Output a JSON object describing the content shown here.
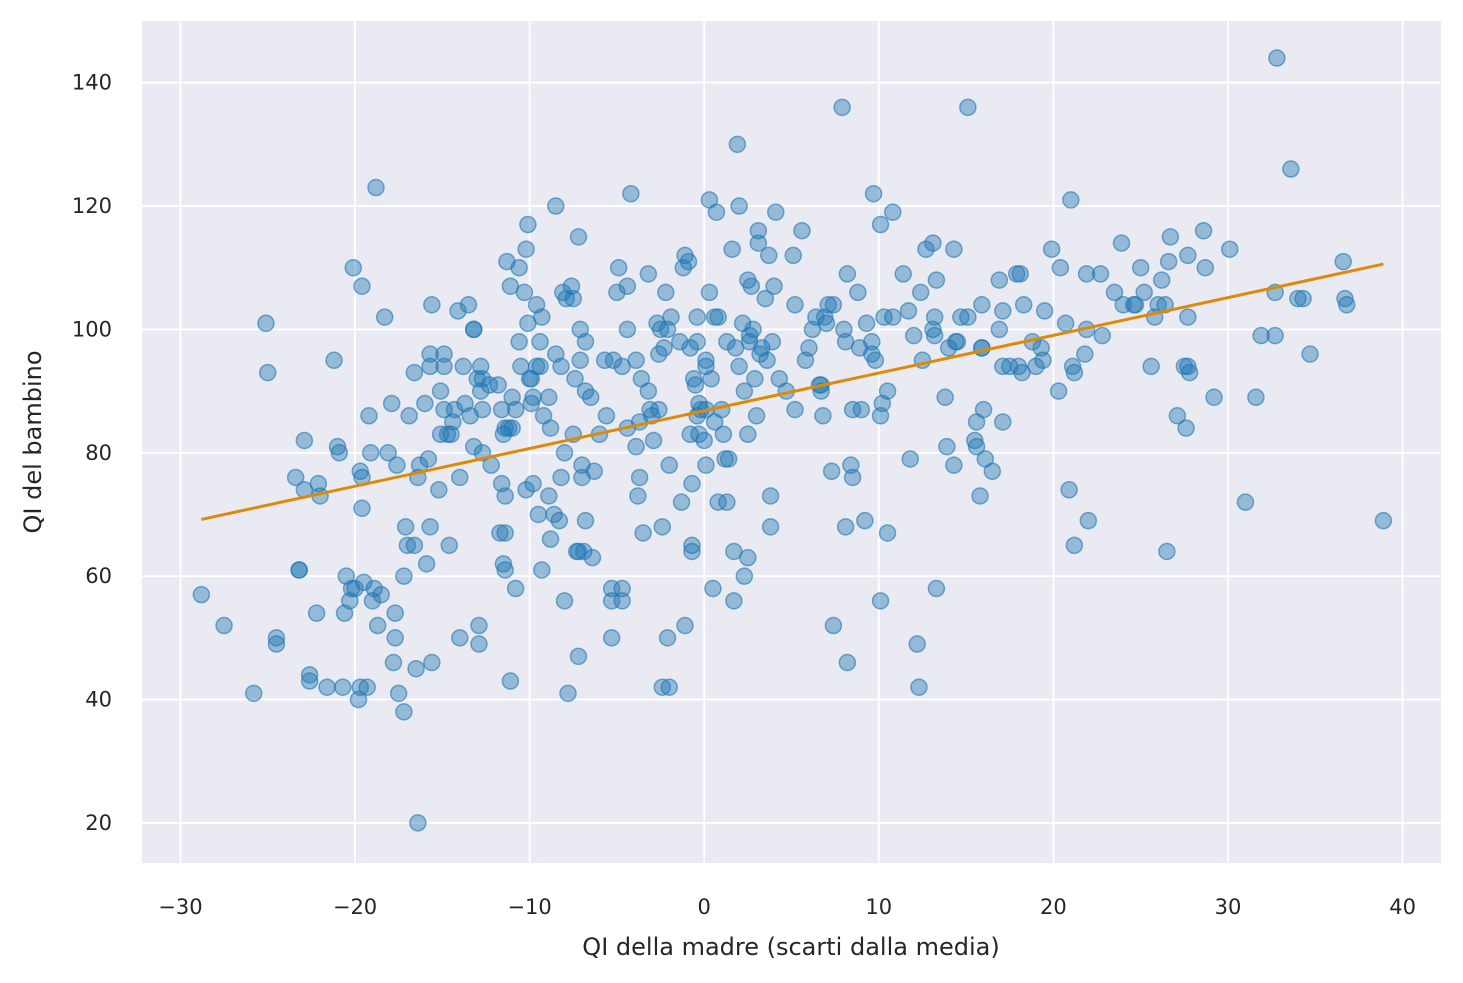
{
  "chart_data": {
    "type": "scatter",
    "xlabel": "QI della madre (scarti dalla media)",
    "ylabel": "QI del bambino",
    "xlim": [
      -32.2,
      42.2
    ],
    "ylim": [
      13.5,
      150
    ],
    "xticks": [
      -30,
      -20,
      -10,
      0,
      10,
      20,
      30,
      40
    ],
    "xtick_labels": [
      "−30",
      "−20",
      "−10",
      "0",
      "10",
      "20",
      "30",
      "40"
    ],
    "yticks": [
      20,
      40,
      60,
      80,
      100,
      120,
      140
    ],
    "ytick_labels": [
      "20",
      "40",
      "60",
      "80",
      "100",
      "120",
      "140"
    ],
    "grid": true,
    "colors": {
      "points": "#1f77b4",
      "line": "#dd8a0a",
      "background": "#eaeaf2"
    },
    "regression_line": {
      "x": [
        -28.8,
        38.9
      ],
      "y": [
        69.2,
        110.6
      ]
    },
    "points": [
      [
        -28.8,
        57
      ],
      [
        -27.5,
        52
      ],
      [
        -25.8,
        41
      ],
      [
        -25.1,
        101
      ],
      [
        -25.0,
        93
      ],
      [
        -24.5,
        50
      ],
      [
        -24.5,
        49
      ],
      [
        -23.4,
        76
      ],
      [
        -23.2,
        61
      ],
      [
        -23.2,
        61
      ],
      [
        -22.9,
        82
      ],
      [
        -22.9,
        74
      ],
      [
        -22.6,
        44
      ],
      [
        -22.6,
        43
      ],
      [
        -22.2,
        54
      ],
      [
        -22.1,
        75
      ],
      [
        -22.0,
        73
      ],
      [
        -21.6,
        42
      ],
      [
        -21.2,
        95
      ],
      [
        -21.0,
        81
      ],
      [
        -20.9,
        80
      ],
      [
        -20.7,
        42
      ],
      [
        -20.6,
        54
      ],
      [
        -20.5,
        60
      ],
      [
        -20.3,
        56
      ],
      [
        -20.2,
        58
      ],
      [
        -20.1,
        110
      ],
      [
        -20.0,
        58
      ],
      [
        -19.8,
        40
      ],
      [
        -19.7,
        42
      ],
      [
        -19.7,
        77
      ],
      [
        -19.6,
        76
      ],
      [
        -19.6,
        107
      ],
      [
        -19.6,
        71
      ],
      [
        -19.5,
        59
      ],
      [
        -19.3,
        42
      ],
      [
        -19.2,
        86
      ],
      [
        -19.1,
        80
      ],
      [
        -19.0,
        56
      ],
      [
        -18.9,
        58
      ],
      [
        -18.8,
        123
      ],
      [
        -18.7,
        52
      ],
      [
        -18.5,
        57
      ],
      [
        -18.3,
        102
      ],
      [
        -18.1,
        80
      ],
      [
        -17.9,
        88
      ],
      [
        -17.8,
        46
      ],
      [
        -17.7,
        54
      ],
      [
        -17.7,
        50
      ],
      [
        -17.6,
        78
      ],
      [
        -17.5,
        41
      ],
      [
        -17.2,
        60
      ],
      [
        -17.2,
        38
      ],
      [
        -17.1,
        68
      ],
      [
        -17.0,
        65
      ],
      [
        -16.9,
        86
      ],
      [
        -16.6,
        93
      ],
      [
        -16.6,
        65
      ],
      [
        -16.5,
        45
      ],
      [
        -16.4,
        76
      ],
      [
        -16.4,
        20
      ],
      [
        -16.3,
        78
      ],
      [
        -16.0,
        88
      ],
      [
        -15.9,
        62
      ],
      [
        -15.8,
        79
      ],
      [
        -15.7,
        96
      ],
      [
        -15.7,
        94
      ],
      [
        -15.7,
        68
      ],
      [
        -15.6,
        104
      ],
      [
        -15.6,
        46
      ],
      [
        -15.2,
        74
      ],
      [
        -15.1,
        83
      ],
      [
        -15.1,
        90
      ],
      [
        -14.9,
        96
      ],
      [
        -14.9,
        94
      ],
      [
        -14.9,
        87
      ],
      [
        -14.7,
        83
      ],
      [
        -14.6,
        65
      ],
      [
        -14.5,
        83
      ],
      [
        -14.4,
        85
      ],
      [
        -14.3,
        87
      ],
      [
        -14.1,
        103
      ],
      [
        -14.0,
        50
      ],
      [
        -14.0,
        76
      ],
      [
        -13.8,
        94
      ],
      [
        -13.7,
        88
      ],
      [
        -13.5,
        104
      ],
      [
        -13.4,
        86
      ],
      [
        -13.2,
        81
      ],
      [
        -13.2,
        100
      ],
      [
        -13.2,
        100
      ],
      [
        -13.0,
        92
      ],
      [
        -12.9,
        52
      ],
      [
        -12.9,
        49
      ],
      [
        -12.8,
        94
      ],
      [
        -12.8,
        90
      ],
      [
        -12.7,
        80
      ],
      [
        -12.7,
        92
      ],
      [
        -12.7,
        87
      ],
      [
        -12.3,
        91
      ],
      [
        -12.2,
        78
      ],
      [
        -11.8,
        91
      ],
      [
        -11.7,
        67
      ],
      [
        -11.6,
        75
      ],
      [
        -11.6,
        87
      ],
      [
        -11.5,
        83
      ],
      [
        -11.5,
        62
      ],
      [
        -11.4,
        61
      ],
      [
        -11.4,
        73
      ],
      [
        -11.4,
        67
      ],
      [
        -11.4,
        84
      ],
      [
        -11.3,
        111
      ],
      [
        -11.2,
        84
      ],
      [
        -11.1,
        43
      ],
      [
        -11.1,
        107
      ],
      [
        -11.0,
        89
      ],
      [
        -11.0,
        84
      ],
      [
        -10.8,
        58
      ],
      [
        -10.8,
        87
      ],
      [
        -10.6,
        98
      ],
      [
        -10.6,
        110
      ],
      [
        -10.5,
        94
      ],
      [
        -10.3,
        106
      ],
      [
        -10.2,
        74
      ],
      [
        -10.2,
        113
      ],
      [
        -10.1,
        117
      ],
      [
        -10.1,
        101
      ],
      [
        -10.0,
        92
      ],
      [
        -9.9,
        88
      ],
      [
        -9.9,
        92
      ],
      [
        -9.8,
        89
      ],
      [
        -9.8,
        75
      ],
      [
        -9.6,
        104
      ],
      [
        -9.6,
        94
      ],
      [
        -9.5,
        70
      ],
      [
        -9.4,
        94
      ],
      [
        -9.4,
        98
      ],
      [
        -9.3,
        102
      ],
      [
        -9.3,
        61
      ],
      [
        -9.2,
        86
      ],
      [
        -8.9,
        89
      ],
      [
        -8.9,
        73
      ],
      [
        -8.8,
        66
      ],
      [
        -8.8,
        84
      ],
      [
        -8.6,
        70
      ],
      [
        -8.5,
        96
      ],
      [
        -8.5,
        120
      ],
      [
        -8.3,
        69
      ],
      [
        -8.2,
        94
      ],
      [
        -8.2,
        76
      ],
      [
        -8.1,
        106
      ],
      [
        -8.0,
        80
      ],
      [
        -8.0,
        56
      ],
      [
        -7.9,
        105
      ],
      [
        -7.8,
        41
      ],
      [
        -7.6,
        107
      ],
      [
        -7.5,
        105
      ],
      [
        -7.5,
        83
      ],
      [
        -7.4,
        92
      ],
      [
        -7.3,
        64
      ],
      [
        -7.2,
        115
      ],
      [
        -7.2,
        64
      ],
      [
        -7.2,
        47
      ],
      [
        -7.1,
        100
      ],
      [
        -7.1,
        95
      ],
      [
        -7.0,
        76
      ],
      [
        -7.0,
        78
      ],
      [
        -6.9,
        64
      ],
      [
        -6.8,
        69
      ],
      [
        -6.8,
        98
      ],
      [
        -6.8,
        90
      ],
      [
        -6.5,
        89
      ],
      [
        -6.4,
        63
      ],
      [
        -6.3,
        77
      ],
      [
        -6.0,
        83
      ],
      [
        -5.7,
        95
      ],
      [
        -5.6,
        86
      ],
      [
        -5.3,
        56
      ],
      [
        -5.3,
        58
      ],
      [
        -5.3,
        50
      ],
      [
        -5.2,
        95
      ],
      [
        -5.0,
        106
      ],
      [
        -4.9,
        110
      ],
      [
        -4.7,
        56
      ],
      [
        -4.7,
        58
      ],
      [
        -4.7,
        94
      ],
      [
        -4.4,
        107
      ],
      [
        -4.4,
        84
      ],
      [
        -4.4,
        100
      ],
      [
        -4.2,
        122
      ],
      [
        -3.9,
        95
      ],
      [
        -3.9,
        81
      ],
      [
        -3.8,
        73
      ],
      [
        -3.7,
        85
      ],
      [
        -3.7,
        76
      ],
      [
        -3.6,
        92
      ],
      [
        -3.5,
        67
      ],
      [
        -3.2,
        109
      ],
      [
        -3.2,
        90
      ],
      [
        -3.1,
        87
      ],
      [
        -3.0,
        86
      ],
      [
        -2.9,
        82
      ],
      [
        -2.7,
        101
      ],
      [
        -2.6,
        96
      ],
      [
        -2.6,
        87
      ],
      [
        -2.5,
        100
      ],
      [
        -2.4,
        68
      ],
      [
        -2.4,
        42
      ],
      [
        -2.3,
        97
      ],
      [
        -2.2,
        106
      ],
      [
        -2.1,
        100
      ],
      [
        -2.1,
        50
      ],
      [
        -2.0,
        42
      ],
      [
        -2.0,
        78
      ],
      [
        -1.9,
        102
      ],
      [
        -1.4,
        98
      ],
      [
        -1.3,
        72
      ],
      [
        -1.2,
        110
      ],
      [
        -1.1,
        52
      ],
      [
        -1.1,
        112
      ],
      [
        -0.9,
        111
      ],
      [
        -0.8,
        97
      ],
      [
        -0.8,
        83
      ],
      [
        -0.7,
        64
      ],
      [
        -0.7,
        65
      ],
      [
        -0.7,
        75
      ],
      [
        -0.6,
        92
      ],
      [
        -0.5,
        91
      ],
      [
        -0.4,
        102
      ],
      [
        -0.4,
        86
      ],
      [
        -0.4,
        98
      ],
      [
        -0.3,
        83
      ],
      [
        -0.3,
        88
      ],
      [
        -0.2,
        87
      ],
      [
        0,
        82
      ],
      [
        0.1,
        95
      ],
      [
        0.1,
        94
      ],
      [
        0.1,
        78
      ],
      [
        0.1,
        87
      ],
      [
        0.3,
        106
      ],
      [
        0.3,
        121
      ],
      [
        0.4,
        92
      ],
      [
        0.5,
        58
      ],
      [
        0.6,
        85
      ],
      [
        0.6,
        102
      ],
      [
        0.7,
        119
      ],
      [
        0.8,
        102
      ],
      [
        0.8,
        72
      ],
      [
        1.0,
        87
      ],
      [
        1.1,
        83
      ],
      [
        1.2,
        79
      ],
      [
        1.3,
        98
      ],
      [
        1.3,
        72
      ],
      [
        1.4,
        79
      ],
      [
        1.6,
        113
      ],
      [
        1.7,
        64
      ],
      [
        1.7,
        56
      ],
      [
        1.8,
        97
      ],
      [
        1.9,
        130
      ],
      [
        2.0,
        120
      ],
      [
        2.0,
        94
      ],
      [
        2.2,
        101
      ],
      [
        2.3,
        90
      ],
      [
        2.3,
        60
      ],
      [
        2.5,
        63
      ],
      [
        2.5,
        108
      ],
      [
        2.5,
        83
      ],
      [
        2.6,
        99
      ],
      [
        2.6,
        98
      ],
      [
        2.7,
        107
      ],
      [
        2.8,
        100
      ],
      [
        2.9,
        92
      ],
      [
        3.0,
        86
      ],
      [
        3.1,
        116
      ],
      [
        3.1,
        114
      ],
      [
        3.2,
        96
      ],
      [
        3.3,
        97
      ],
      [
        3.5,
        105
      ],
      [
        3.6,
        95
      ],
      [
        3.7,
        112
      ],
      [
        3.8,
        73
      ],
      [
        3.8,
        68
      ],
      [
        3.9,
        98
      ],
      [
        4.0,
        107
      ],
      [
        4.1,
        119
      ],
      [
        4.3,
        92
      ],
      [
        4.7,
        90
      ],
      [
        5.1,
        112
      ],
      [
        5.2,
        104
      ],
      [
        5.2,
        87
      ],
      [
        5.6,
        116
      ],
      [
        5.8,
        95
      ],
      [
        6.0,
        97
      ],
      [
        6.2,
        100
      ],
      [
        6.4,
        102
      ],
      [
        6.6,
        91
      ],
      [
        6.7,
        90
      ],
      [
        6.7,
        91
      ],
      [
        6.8,
        86
      ],
      [
        6.9,
        102
      ],
      [
        7.0,
        101
      ],
      [
        7.1,
        104
      ],
      [
        7.3,
        77
      ],
      [
        7.4,
        104
      ],
      [
        7.4,
        52
      ],
      [
        7.9,
        136
      ],
      [
        8.0,
        100
      ],
      [
        8.1,
        98
      ],
      [
        8.1,
        68
      ],
      [
        8.2,
        109
      ],
      [
        8.2,
        46
      ],
      [
        8.4,
        78
      ],
      [
        8.5,
        87
      ],
      [
        8.5,
        76
      ],
      [
        8.8,
        106
      ],
      [
        8.9,
        97
      ],
      [
        9.0,
        87
      ],
      [
        9.2,
        69
      ],
      [
        9.3,
        101
      ],
      [
        9.6,
        98
      ],
      [
        9.6,
        96
      ],
      [
        9.7,
        122
      ],
      [
        9.8,
        95
      ],
      [
        10.1,
        117
      ],
      [
        10.1,
        86
      ],
      [
        10.1,
        56
      ],
      [
        10.2,
        88
      ],
      [
        10.3,
        102
      ],
      [
        10.5,
        67
      ],
      [
        10.5,
        90
      ],
      [
        10.8,
        119
      ],
      [
        10.8,
        102
      ],
      [
        11.4,
        109
      ],
      [
        11.7,
        103
      ],
      [
        11.8,
        79
      ],
      [
        12.0,
        99
      ],
      [
        12.2,
        49
      ],
      [
        12.3,
        42
      ],
      [
        12.4,
        106
      ],
      [
        12.5,
        95
      ],
      [
        12.7,
        113
      ],
      [
        13.1,
        114
      ],
      [
        13.1,
        100
      ],
      [
        13.2,
        102
      ],
      [
        13.2,
        99
      ],
      [
        13.3,
        108
      ],
      [
        13.3,
        58
      ],
      [
        13.8,
        89
      ],
      [
        13.9,
        81
      ],
      [
        14.0,
        97
      ],
      [
        14.3,
        113
      ],
      [
        14.3,
        78
      ],
      [
        14.4,
        98
      ],
      [
        14.5,
        98
      ],
      [
        14.7,
        102
      ],
      [
        15.1,
        136
      ],
      [
        15.1,
        102
      ],
      [
        15.5,
        82
      ],
      [
        15.6,
        81
      ],
      [
        15.6,
        85
      ],
      [
        15.8,
        73
      ],
      [
        15.9,
        104
      ],
      [
        15.9,
        97
      ],
      [
        15.9,
        97
      ],
      [
        16.0,
        87
      ],
      [
        16.1,
        79
      ],
      [
        16.5,
        77
      ],
      [
        16.9,
        100
      ],
      [
        16.9,
        108
      ],
      [
        17.1,
        103
      ],
      [
        17.1,
        94
      ],
      [
        17.1,
        85
      ],
      [
        17.5,
        94
      ],
      [
        17.9,
        109
      ],
      [
        18.0,
        94
      ],
      [
        18.1,
        109
      ],
      [
        18.2,
        93
      ],
      [
        18.3,
        104
      ],
      [
        18.8,
        98
      ],
      [
        19.0,
        94
      ],
      [
        19.3,
        97
      ],
      [
        19.4,
        95
      ],
      [
        19.5,
        103
      ],
      [
        19.9,
        113
      ],
      [
        20.3,
        90
      ],
      [
        20.4,
        110
      ],
      [
        20.7,
        101
      ],
      [
        20.9,
        74
      ],
      [
        21.0,
        121
      ],
      [
        21.1,
        94
      ],
      [
        21.2,
        93
      ],
      [
        21.2,
        65
      ],
      [
        21.8,
        96
      ],
      [
        21.9,
        109
      ],
      [
        21.9,
        100
      ],
      [
        22.0,
        69
      ],
      [
        22.7,
        109
      ],
      [
        22.8,
        99
      ],
      [
        23.5,
        106
      ],
      [
        23.9,
        114
      ],
      [
        24.0,
        104
      ],
      [
        24.6,
        104
      ],
      [
        24.7,
        104
      ],
      [
        25.0,
        110
      ],
      [
        25.2,
        106
      ],
      [
        25.6,
        94
      ],
      [
        25.8,
        102
      ],
      [
        26.0,
        104
      ],
      [
        26.2,
        108
      ],
      [
        26.4,
        104
      ],
      [
        26.5,
        64
      ],
      [
        26.6,
        111
      ],
      [
        26.7,
        115
      ],
      [
        27.1,
        86
      ],
      [
        27.5,
        94
      ],
      [
        27.6,
        84
      ],
      [
        27.7,
        102
      ],
      [
        27.7,
        94
      ],
      [
        27.7,
        112
      ],
      [
        27.8,
        93
      ],
      [
        28.6,
        116
      ],
      [
        28.7,
        110
      ],
      [
        29.2,
        89
      ],
      [
        30.1,
        113
      ],
      [
        31.0,
        72
      ],
      [
        31.6,
        89
      ],
      [
        31.9,
        99
      ],
      [
        32.7,
        99
      ],
      [
        32.7,
        106
      ],
      [
        32.8,
        144
      ],
      [
        33.6,
        126
      ],
      [
        34.0,
        105
      ],
      [
        34.3,
        105
      ],
      [
        34.7,
        96
      ],
      [
        36.6,
        111
      ],
      [
        36.7,
        105
      ],
      [
        36.8,
        104
      ],
      [
        38.9,
        69
      ]
    ]
  }
}
